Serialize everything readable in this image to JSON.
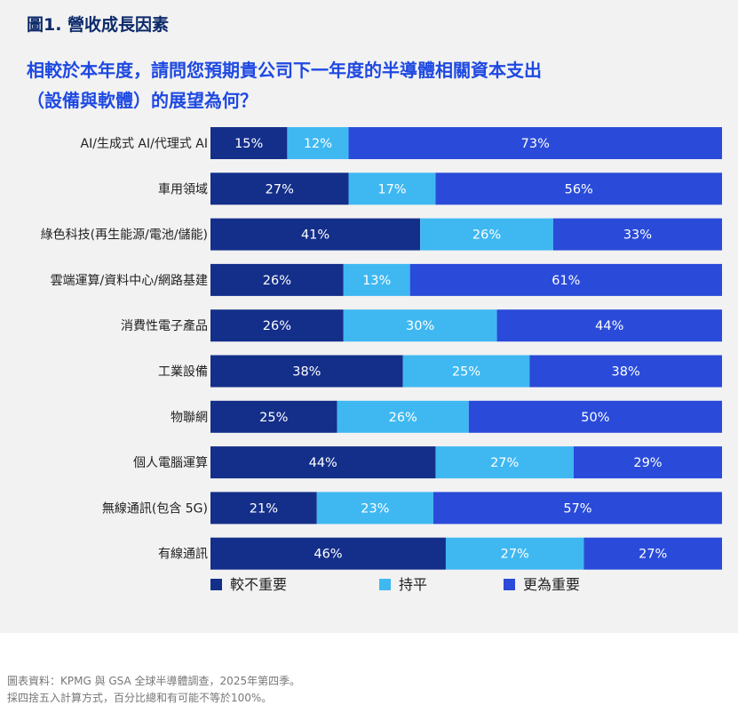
{
  "figure_label": "圖1. 營收成長因素",
  "subtitle": "相較於本年度，請問您預期貴公司下一年度的半導體相關資本支出\n（設備與軟體）的展望為何？",
  "source_note": "圖表資料：KPMG 與 GSA 全球半導體調查，2025年第四季。\n採四捨五入計算方式，百分比總和有可能不等於100%。",
  "colors": {
    "less": "#142f8a",
    "flat": "#3fb8f2",
    "more": "#2a4bd9",
    "panel": "#f2f2f2"
  },
  "chart_data": {
    "type": "bar",
    "orientation": "horizontal",
    "stacked": true,
    "categories": [
      "AI/生成式 AI/代理式 AI",
      "車用領域",
      "綠色科技(再生能源/電池/儲能)",
      "雲端運算/資料中心/網路基建",
      "消費性電子產品",
      "工業設備",
      "物聯網",
      "個人電腦運算",
      "無線通訊(包含 5G)",
      "有線通訊"
    ],
    "series": [
      {
        "name": "較不重要",
        "color": "#142f8a",
        "values": [
          15,
          27,
          41,
          26,
          26,
          38,
          25,
          44,
          21,
          46
        ]
      },
      {
        "name": "持平",
        "color": "#3fb8f2",
        "values": [
          12,
          17,
          26,
          13,
          30,
          25,
          26,
          27,
          23,
          27
        ]
      },
      {
        "name": "更為重要",
        "color": "#2a4bd9",
        "values": [
          73,
          56,
          33,
          61,
          44,
          38,
          50,
          29,
          57,
          27
        ]
      }
    ],
    "value_suffix": "%",
    "legend_position": "bottom"
  }
}
